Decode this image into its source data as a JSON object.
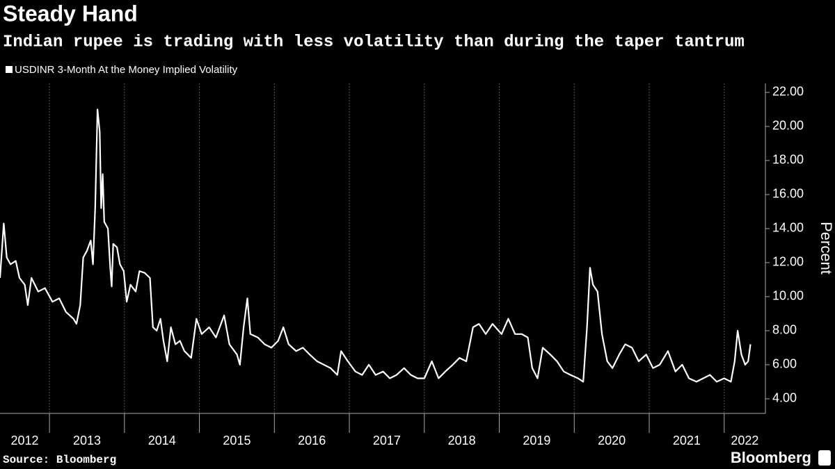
{
  "chart_data": {
    "type": "line",
    "title": "Steady Hand",
    "subtitle": "Indian rupee is trading with less volatility than during the taper tantrum",
    "y_axis_label": "Percent",
    "source": "Source: Bloomberg",
    "brand": "Bloomberg",
    "x": [
      2012.34,
      2012.39,
      2012.43,
      2012.48,
      2012.55,
      2012.6,
      2012.67,
      2012.71,
      2012.76,
      2012.85,
      2012.94,
      2013.04,
      2013.13,
      2013.22,
      2013.32,
      2013.36,
      2013.41,
      2013.45,
      2013.5,
      2013.55,
      2013.58,
      2013.61,
      2013.64,
      2013.67,
      2013.69,
      2013.71,
      2013.73,
      2013.78,
      2013.81,
      2013.83,
      2013.85,
      2013.9,
      2013.94,
      2013.99,
      2014.03,
      2014.08,
      2014.15,
      2014.2,
      2014.27,
      2014.34,
      2014.38,
      2014.43,
      2014.48,
      2014.52,
      2014.57,
      2014.62,
      2014.68,
      2014.74,
      2014.8,
      2014.89,
      2014.96,
      2015.03,
      2015.13,
      2015.22,
      2015.33,
      2015.4,
      2015.5,
      2015.54,
      2015.59,
      2015.64,
      2015.68,
      2015.78,
      2015.87,
      2015.96,
      2016.05,
      2016.12,
      2016.19,
      2016.29,
      2016.38,
      2016.47,
      2016.57,
      2016.66,
      2016.75,
      2016.84,
      2016.89,
      2016.98,
      2017.08,
      2017.17,
      2017.26,
      2017.35,
      2017.45,
      2017.54,
      2017.63,
      2017.73,
      2017.82,
      2017.91,
      2018.0,
      2018.1,
      2018.19,
      2018.28,
      2018.38,
      2018.47,
      2018.56,
      2018.65,
      2018.73,
      2018.82,
      2018.91,
      2019.03,
      2019.12,
      2019.21,
      2019.3,
      2019.38,
      2019.44,
      2019.51,
      2019.58,
      2019.68,
      2019.77,
      2019.86,
      2019.95,
      2020.05,
      2020.12,
      2020.17,
      2020.21,
      2020.25,
      2020.31,
      2020.37,
      2020.44,
      2020.51,
      2020.6,
      2020.68,
      2020.77,
      2020.86,
      2020.96,
      2021.05,
      2021.14,
      2021.25,
      2021.35,
      2021.44,
      2021.53,
      2021.63,
      2021.72,
      2021.81,
      2021.9,
      2022.0,
      2022.09,
      2022.14,
      2022.18,
      2022.23,
      2022.28,
      2022.32,
      2022.35
    ],
    "series": [
      {
        "name": "USDINR 3-Month At the Money Implied Volatility",
        "color": "#ffffff",
        "values": [
          11.1,
          14.3,
          12.3,
          11.9,
          12.1,
          11.1,
          10.7,
          9.5,
          11.1,
          10.3,
          10.5,
          9.7,
          9.9,
          9.1,
          8.7,
          8.4,
          9.5,
          12.3,
          12.7,
          13.3,
          11.9,
          15.2,
          21.0,
          19.7,
          15.2,
          17.2,
          14.4,
          14.0,
          11.7,
          10.6,
          13.1,
          12.9,
          11.9,
          11.5,
          9.7,
          10.7,
          10.3,
          11.5,
          11.4,
          11.1,
          8.2,
          8.0,
          8.7,
          7.4,
          6.2,
          8.2,
          7.2,
          7.4,
          6.8,
          6.4,
          8.7,
          7.8,
          8.2,
          7.6,
          8.9,
          7.2,
          6.6,
          6.0,
          8.2,
          9.9,
          7.8,
          7.6,
          7.2,
          7.0,
          7.4,
          8.2,
          7.2,
          6.8,
          7.0,
          6.6,
          6.2,
          6.0,
          5.8,
          5.4,
          6.8,
          6.2,
          5.6,
          5.4,
          6.0,
          5.4,
          5.6,
          5.2,
          5.4,
          5.8,
          5.4,
          5.2,
          5.2,
          6.2,
          5.2,
          5.6,
          6.0,
          6.4,
          6.2,
          8.2,
          8.4,
          7.8,
          8.4,
          7.8,
          8.7,
          7.8,
          7.8,
          7.6,
          5.8,
          5.2,
          7.0,
          6.6,
          6.2,
          5.6,
          5.4,
          5.2,
          5.0,
          8.2,
          11.7,
          10.7,
          10.3,
          7.8,
          6.2,
          5.8,
          6.6,
          7.2,
          7.0,
          6.2,
          6.6,
          5.8,
          6.0,
          6.8,
          5.6,
          6.0,
          5.2,
          5.0,
          5.2,
          5.4,
          5.0,
          5.2,
          5.0,
          6.2,
          8.0,
          6.6,
          6.0,
          6.2,
          7.2
        ]
      }
    ],
    "xlim": [
      2012.34,
      2022.55
    ],
    "xticks": [
      2012,
      2013,
      2014,
      2015,
      2016,
      2017,
      2018,
      2019,
      2020,
      2021,
      2022
    ],
    "ylim": [
      3.14,
      22.53
    ],
    "yticks": [
      {
        "value": 4,
        "label": "4.00"
      },
      {
        "value": 6,
        "label": "6.00"
      },
      {
        "value": 8,
        "label": "8.00"
      },
      {
        "value": 10,
        "label": "10.00"
      },
      {
        "value": 12,
        "label": "12.00"
      },
      {
        "value": 14,
        "label": "14.00"
      },
      {
        "value": 16,
        "label": "16.00"
      },
      {
        "value": 18,
        "label": "18.00"
      },
      {
        "value": 20,
        "label": "20.00"
      },
      {
        "value": 22,
        "label": "22.00"
      }
    ],
    "xgrid": true
  }
}
